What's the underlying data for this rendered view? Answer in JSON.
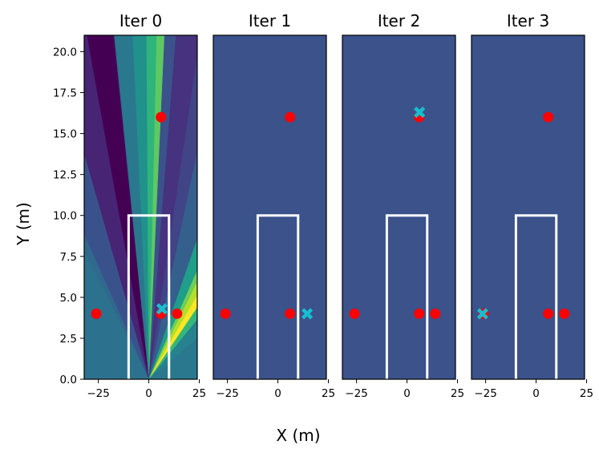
{
  "chart_data": {
    "type": "scatter",
    "xlabel": "X (m)",
    "ylabel": "Y (m)",
    "xlim": [
      -32,
      24
    ],
    "ylim": [
      0,
      21
    ],
    "xticks": [
      -25,
      0,
      25
    ],
    "yticks": [
      0.0,
      2.5,
      5.0,
      7.5,
      10.0,
      12.5,
      15.0,
      17.5,
      20.0
    ],
    "background_color": "#3b528b",
    "marker_color": "#ff0000",
    "estimate_color": "#17becf",
    "box_color": "#ffffff",
    "box_outline": {
      "x": [
        -10,
        -10,
        10,
        10
      ],
      "y": [
        0,
        10,
        10,
        0
      ]
    },
    "panels": [
      {
        "title": "Iter 0",
        "heatmap": true,
        "points": [
          {
            "x": -26,
            "y": 4
          },
          {
            "x": 6,
            "y": 4
          },
          {
            "x": 14,
            "y": 4
          },
          {
            "x": 6,
            "y": 16
          }
        ],
        "estimate": {
          "x": 6.5,
          "y": 4.3
        }
      },
      {
        "title": "Iter 1",
        "heatmap": false,
        "points": [
          {
            "x": -26,
            "y": 4
          },
          {
            "x": 6,
            "y": 4
          },
          {
            "x": 6,
            "y": 16
          }
        ],
        "estimate": {
          "x": 14.5,
          "y": 4
        }
      },
      {
        "title": "Iter 2",
        "heatmap": false,
        "points": [
          {
            "x": -26,
            "y": 4
          },
          {
            "x": 6,
            "y": 4
          },
          {
            "x": 14,
            "y": 4
          },
          {
            "x": 6,
            "y": 16
          }
        ],
        "estimate": {
          "x": 6.2,
          "y": 16.3
        }
      },
      {
        "title": "Iter 3",
        "heatmap": false,
        "points": [
          {
            "x": -26,
            "y": 4
          },
          {
            "x": 6,
            "y": 4
          },
          {
            "x": 14,
            "y": 4
          },
          {
            "x": 6,
            "y": 16
          }
        ],
        "estimate": {
          "x": -26.5,
          "y": 4
        }
      }
    ]
  }
}
